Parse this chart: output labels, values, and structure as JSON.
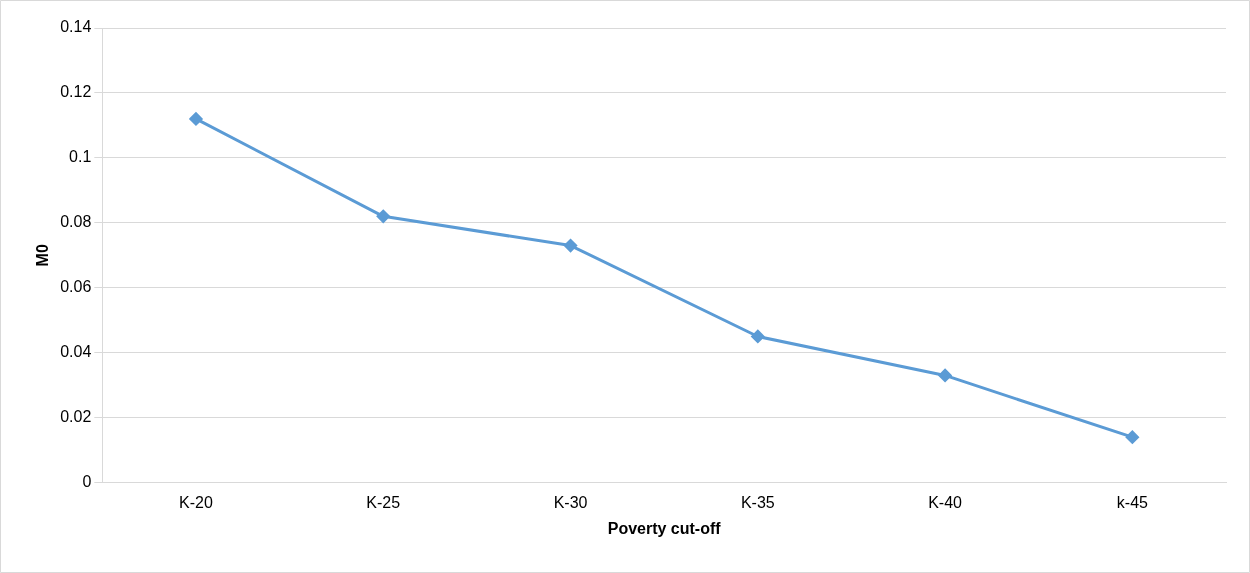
{
  "chart_data": {
    "type": "line",
    "xlabel": "Poverty cut-off",
    "ylabel": "M0",
    "categories": [
      "K-20",
      "K-25",
      "K-30",
      "K-35",
      "K-40",
      "k-45"
    ],
    "series": [
      {
        "color": "#5b9bd5",
        "values": [
          0.112,
          0.082,
          0.073,
          0.045,
          0.033,
          0.014
        ]
      }
    ],
    "ylim": [
      0,
      0.14
    ],
    "yticks": [
      0,
      0.02,
      0.04,
      0.06,
      0.08,
      0.1,
      0.12,
      0.14
    ],
    "grid": "y",
    "legend": false,
    "marker": "diamond",
    "line_style": "solid"
  }
}
